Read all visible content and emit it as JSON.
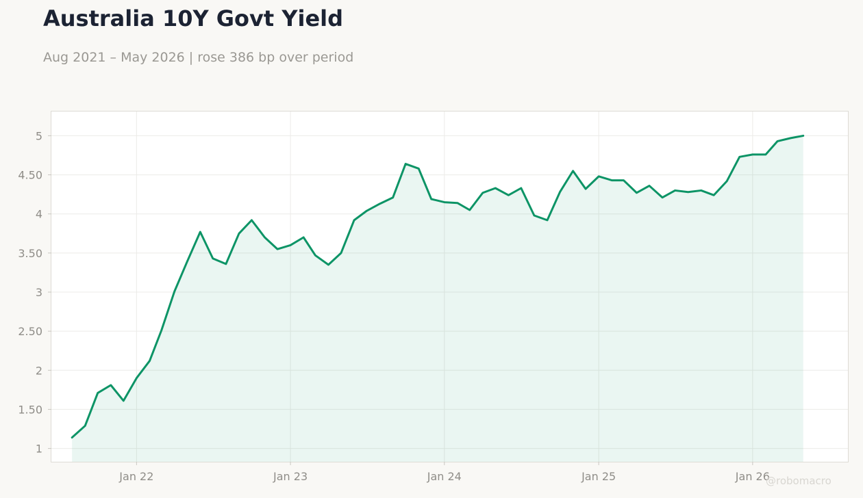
{
  "title": "Australia 10Y Govt Yield",
  "subtitle": "Aug 2021 – May 2026 | rose 386 bp over period",
  "watermark": "@robomacro",
  "colors": {
    "line": "#0d9466",
    "fill": "#0d9466",
    "title": "#1c2333",
    "muted": "#9a9893",
    "grid": "#ecebe8",
    "background": "#f9f8f5",
    "plot_background": "#ffffff"
  },
  "chart_data": {
    "type": "area",
    "title": "Australia 10Y Govt Yield",
    "subtitle": "Aug 2021 – May 2026 | rose 386 bp over period",
    "xlabel": "",
    "ylabel": "",
    "ylim": [
      0.83,
      5.31
    ],
    "xlim": [
      "2021-06-13",
      "2026-08-15"
    ],
    "grid": true,
    "legend": "none",
    "y_ticks": [
      {
        "value": 1,
        "label": "1"
      },
      {
        "value": 1.5,
        "label": "1.50"
      },
      {
        "value": 2,
        "label": "2"
      },
      {
        "value": 2.5,
        "label": "2.50"
      },
      {
        "value": 3,
        "label": "3"
      },
      {
        "value": 3.5,
        "label": "3.50"
      },
      {
        "value": 4,
        "label": "4"
      },
      {
        "value": 4.5,
        "label": "4.50"
      },
      {
        "value": 5,
        "label": "5"
      }
    ],
    "x_ticks": [
      {
        "date": "2022-01-01",
        "label": "Jan 22"
      },
      {
        "date": "2023-01-01",
        "label": "Jan 23"
      },
      {
        "date": "2024-01-01",
        "label": "Jan 24"
      },
      {
        "date": "2025-01-01",
        "label": "Jan 25"
      },
      {
        "date": "2026-01-01",
        "label": "Jan 26"
      }
    ],
    "series": [
      {
        "x": [
          "2021-08-01",
          "2021-09-01",
          "2021-10-01",
          "2021-11-01",
          "2021-12-01",
          "2022-01-01",
          "2022-02-01",
          "2022-03-01",
          "2022-04-01",
          "2022-05-01",
          "2022-06-01",
          "2022-07-01",
          "2022-08-01",
          "2022-09-01",
          "2022-10-01",
          "2022-11-01",
          "2022-12-01",
          "2023-01-01",
          "2023-02-01",
          "2023-03-01",
          "2023-04-01",
          "2023-05-01",
          "2023-06-01",
          "2023-07-01",
          "2023-08-01",
          "2023-09-01",
          "2023-10-01",
          "2023-11-01",
          "2023-12-01",
          "2024-01-01",
          "2024-02-01",
          "2024-03-01",
          "2024-04-01",
          "2024-05-01",
          "2024-06-01",
          "2024-07-01",
          "2024-08-01",
          "2024-09-01",
          "2024-10-01",
          "2024-11-01",
          "2024-12-01",
          "2025-01-01",
          "2025-02-01",
          "2025-03-01",
          "2025-04-01",
          "2025-05-01",
          "2025-06-01",
          "2025-07-01",
          "2025-08-01",
          "2025-09-01",
          "2025-10-01",
          "2025-11-01",
          "2025-12-01",
          "2026-01-01",
          "2026-02-01",
          "2026-03-01",
          "2026-04-01",
          "2026-05-01"
        ],
        "values": [
          1.14,
          1.29,
          1.71,
          1.81,
          1.61,
          1.9,
          2.12,
          2.51,
          3.01,
          3.39,
          3.77,
          3.43,
          3.36,
          3.75,
          3.92,
          3.7,
          3.55,
          3.6,
          3.7,
          3.47,
          3.35,
          3.5,
          3.92,
          4.04,
          4.13,
          4.21,
          4.64,
          4.58,
          4.19,
          4.15,
          4.14,
          4.05,
          4.27,
          4.33,
          4.24,
          4.33,
          3.98,
          3.92,
          4.28,
          4.55,
          4.32,
          4.48,
          4.43,
          4.43,
          4.27,
          4.36,
          4.21,
          4.3,
          4.28,
          4.3,
          4.24,
          4.42,
          4.73,
          4.76,
          4.76,
          4.93,
          4.97,
          5.0
        ]
      }
    ]
  }
}
